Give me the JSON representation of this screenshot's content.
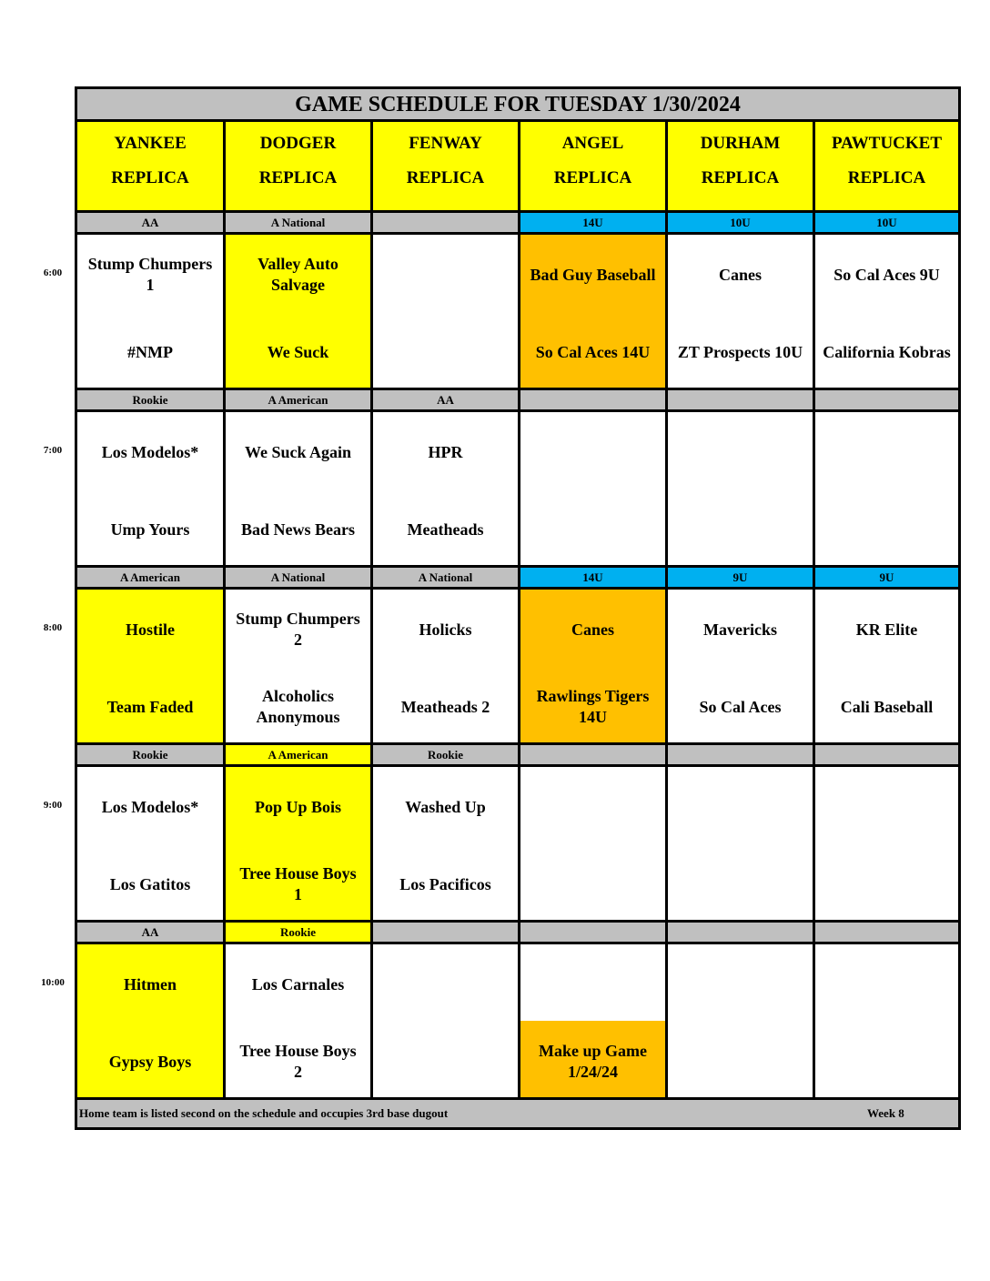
{
  "title": "GAME SCHEDULE FOR TUESDAY 1/30/2024",
  "colors": {
    "yellow": "#FFFF00",
    "orange": "#FFC000",
    "blue": "#00B0F0",
    "gray": "#C0C0C0",
    "white": "#FFFFFF"
  },
  "venues": [
    {
      "line1": "YANKEE",
      "line2": "REPLICA"
    },
    {
      "line1": "DODGER",
      "line2": "REPLICA"
    },
    {
      "line1": "FENWAY",
      "line2": "REPLICA"
    },
    {
      "line1": "ANGEL",
      "line2": "REPLICA"
    },
    {
      "line1": "DURHAM",
      "line2": "REPLICA"
    },
    {
      "line1": "PAWTUCKET",
      "line2": "REPLICA"
    }
  ],
  "slots": [
    {
      "time": "6:00",
      "divisions": [
        {
          "label": "AA",
          "color": "gray"
        },
        {
          "label": "A National",
          "color": "gray"
        },
        {
          "label": "",
          "color": "gray"
        },
        {
          "label": "14U",
          "color": "blue"
        },
        {
          "label": "10U",
          "color": "blue"
        },
        {
          "label": "10U",
          "color": "blue"
        }
      ],
      "games": [
        {
          "team1": "Stump Chumpers\n1",
          "team2": "#NMP",
          "color": "white"
        },
        {
          "team1": "Valley Auto\nSalvage",
          "team2": "We Suck",
          "color": "yellow"
        },
        {
          "team1": "",
          "team2": "",
          "color": "white"
        },
        {
          "team1": "Bad Guy Baseball",
          "team2": "So Cal Aces 14U",
          "color": "orange"
        },
        {
          "team1": "Canes",
          "team2": "ZT Prospects 10U",
          "color": "white"
        },
        {
          "team1": "So Cal Aces 9U",
          "team2": "California Kobras",
          "color": "white"
        }
      ]
    },
    {
      "time": "7:00",
      "divisions": [
        {
          "label": "Rookie",
          "color": "gray"
        },
        {
          "label": "A American",
          "color": "gray"
        },
        {
          "label": "AA",
          "color": "gray"
        },
        {
          "label": "",
          "color": "gray"
        },
        {
          "label": "",
          "color": "gray"
        },
        {
          "label": "",
          "color": "gray"
        }
      ],
      "games": [
        {
          "team1": "Los Modelos*",
          "team2": "Ump Yours",
          "color": "white"
        },
        {
          "team1": "We Suck Again",
          "team2": "Bad News Bears",
          "color": "white"
        },
        {
          "team1": "HPR",
          "team2": "Meatheads",
          "color": "white"
        },
        {
          "team1": "",
          "team2": "",
          "color": "white"
        },
        {
          "team1": "",
          "team2": "",
          "color": "white"
        },
        {
          "team1": "",
          "team2": "",
          "color": "white"
        }
      ]
    },
    {
      "time": "8:00",
      "divisions": [
        {
          "label": "A American",
          "color": "gray"
        },
        {
          "label": "A National",
          "color": "gray"
        },
        {
          "label": "A National",
          "color": "gray"
        },
        {
          "label": "14U",
          "color": "blue"
        },
        {
          "label": "9U",
          "color": "blue"
        },
        {
          "label": "9U",
          "color": "blue"
        }
      ],
      "games": [
        {
          "team1": "Hostile",
          "team2": "Team Faded",
          "color": "yellow"
        },
        {
          "team1": "Stump Chumpers\n2",
          "team2": "Alcoholics\nAnonymous",
          "color": "white"
        },
        {
          "team1": "Holicks",
          "team2": "Meatheads 2",
          "color": "white"
        },
        {
          "team1": "Canes",
          "team2": "Rawlings Tigers\n14U",
          "color": "orange"
        },
        {
          "team1": "Mavericks",
          "team2": "So Cal Aces",
          "color": "white"
        },
        {
          "team1": "KR Elite",
          "team2": "Cali Baseball",
          "color": "white"
        }
      ]
    },
    {
      "time": "9:00",
      "divisions": [
        {
          "label": "Rookie",
          "color": "gray"
        },
        {
          "label": "A American",
          "color": "yellow"
        },
        {
          "label": "Rookie",
          "color": "gray"
        },
        {
          "label": "",
          "color": "gray"
        },
        {
          "label": "",
          "color": "gray"
        },
        {
          "label": "",
          "color": "gray"
        }
      ],
      "games": [
        {
          "team1": "Los Modelos*",
          "team2": "Los Gatitos",
          "color": "white"
        },
        {
          "team1": "Pop Up Bois",
          "team2": "Tree House Boys\n1",
          "color": "yellow"
        },
        {
          "team1": "Washed Up",
          "team2": "Los Pacificos",
          "color": "white"
        },
        {
          "team1": "",
          "team2": "",
          "color": "white"
        },
        {
          "team1": "",
          "team2": "",
          "color": "white"
        },
        {
          "team1": "",
          "team2": "",
          "color": "white"
        }
      ]
    },
    {
      "time": "10:00",
      "divisions": [
        {
          "label": "AA",
          "color": "gray"
        },
        {
          "label": "Rookie",
          "color": "yellow"
        },
        {
          "label": "",
          "color": "gray"
        },
        {
          "label": "",
          "color": "gray"
        },
        {
          "label": "",
          "color": "gray"
        },
        {
          "label": "",
          "color": "gray"
        }
      ],
      "games": [
        {
          "team1": "Hitmen",
          "team2": "Gypsy Boys",
          "color": "yellow"
        },
        {
          "team1": "Los Carnales",
          "team2": "Tree House Boys\n2",
          "color": "white"
        },
        {
          "team1": "",
          "team2": "",
          "color": "white"
        },
        {
          "team1": "",
          "team2": "Make up Game\n1/24/24",
          "color": "white",
          "team2_color": "orange"
        },
        {
          "team1": "",
          "team2": "",
          "color": "white"
        },
        {
          "team1": "",
          "team2": "",
          "color": "white"
        }
      ]
    }
  ],
  "footer": {
    "note": "Home team is listed second on the schedule and occupies 3rd base dugout",
    "week": "Week 8"
  }
}
